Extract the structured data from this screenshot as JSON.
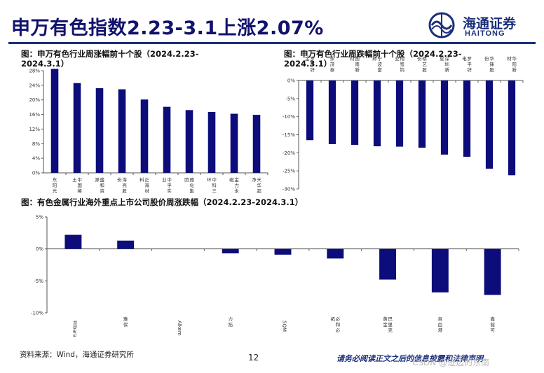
{
  "header": {
    "title": "申万有色指数2.23-3.1上涨2.07%",
    "logo_cn": "海通证券",
    "logo_en": "HAITONG"
  },
  "colors": {
    "bar": "#0c0c7a",
    "brand": "#1b2f7a"
  },
  "chart_data": [
    {
      "type": "bar",
      "title": "图：申万有色行业周涨幅前十个股（2024.2.23-2024.3.1）",
      "categories": [
        "东阳光",
        "中国稀土",
        "盛和资源",
        "海亮股份",
        "正海材料",
        "中孚实业",
        "雅化集团",
        "中科三环",
        "金力永磁",
        "天华超净"
      ],
      "values": [
        28.5,
        24.6,
        23.2,
        22.9,
        20.1,
        18.1,
        17.2,
        16.7,
        16.2,
        15.9
      ],
      "ylim": [
        0,
        28
      ],
      "yticks": [
        "0%",
        "4%",
        "8%",
        "12%",
        "16%",
        "20%",
        "24%",
        "28%"
      ],
      "grid": false
    },
    {
      "type": "bar",
      "title": "图：申万有色行业周跌幅前十个股（2024.2.23-2024.3.1）",
      "categories": [
        "罗平锌金",
        "永茂泰",
        "图南新材",
        "宁波富邦",
        "翔鹭钨业",
        "精艺股份",
        "深圳新星",
        "罗平锌电",
        "华锋股份",
        "华阳新材"
      ],
      "values": [
        -16.5,
        -17.6,
        -17.8,
        -18.2,
        -18.3,
        -18.6,
        -20.5,
        -21.1,
        -24.4,
        -26.2
      ],
      "ylim": [
        -30,
        0
      ],
      "yticks": [
        "0%",
        "-5%",
        "-10%",
        "-15%",
        "-20%",
        "-25%",
        "-30%"
      ],
      "grid": false
    },
    {
      "type": "bar",
      "title": "图：有色金属行业海外重点上市公司股价周涨跌幅（2024.2.23-2024.3.1）",
      "categories": [
        "Pilbara",
        "雅保",
        "Alkem",
        "力拓",
        "SQM",
        "必和必拓",
        "巴里克黄金",
        "自由港",
        "嘉能可"
      ],
      "values": [
        2.2,
        1.3,
        0.0,
        -0.7,
        -0.9,
        -1.5,
        -4.8,
        -6.8,
        -7.2
      ],
      "ylim": [
        -10,
        5
      ],
      "yticks": [
        "5%",
        "0%",
        "-5%",
        "-10%"
      ],
      "grid": false
    }
  ],
  "footer": {
    "source": "资料来源：Wind，海通证券研究所",
    "page": "12",
    "disclaimer": "请务必阅读正文之后的信息披露和法律声明",
    "watermark": "CSDN @迹边的东南"
  }
}
